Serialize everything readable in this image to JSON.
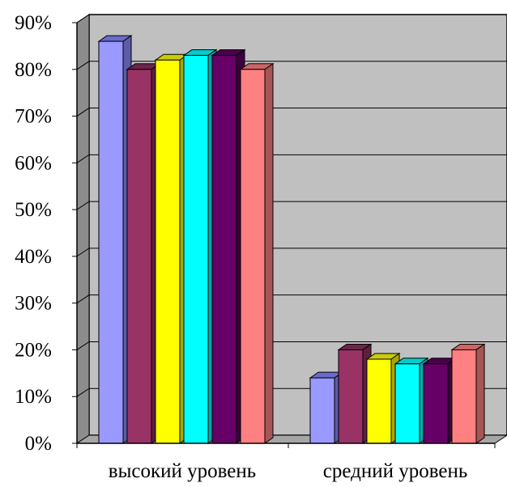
{
  "chart_data": {
    "type": "bar",
    "style": "3d-clustered-column",
    "categories": [
      "высокий уровень",
      "средний уровень"
    ],
    "series": [
      {
        "values": [
          86,
          14
        ],
        "color": "#9999FF",
        "top_color": "#6B6BCC",
        "side_color": "#5C5CA8"
      },
      {
        "values": [
          80,
          20
        ],
        "color": "#993366",
        "top_color": "#6E2449",
        "side_color": "#5E1F3F"
      },
      {
        "values": [
          82,
          18
        ],
        "color": "#FFFF00",
        "top_color": "#CCCC00",
        "side_color": "#A8A800"
      },
      {
        "values": [
          83,
          17
        ],
        "color": "#00FFFF",
        "top_color": "#00CCCC",
        "side_color": "#00A8A8"
      },
      {
        "values": [
          83,
          17
        ],
        "color": "#660066",
        "top_color": "#4A004A",
        "side_color": "#3D003D"
      },
      {
        "values": [
          80,
          20
        ],
        "color": "#FF8080",
        "top_color": "#CC6666",
        "side_color": "#A85555"
      }
    ],
    "y_ticks": [
      "0%",
      "10%",
      "20%",
      "30%",
      "40%",
      "50%",
      "60%",
      "70%",
      "80%",
      "90%"
    ],
    "ylim": [
      0,
      90
    ],
    "grid": true,
    "legend": "none",
    "wall_color": "#C0C0C0",
    "floor_color": "#A6A6A6"
  }
}
